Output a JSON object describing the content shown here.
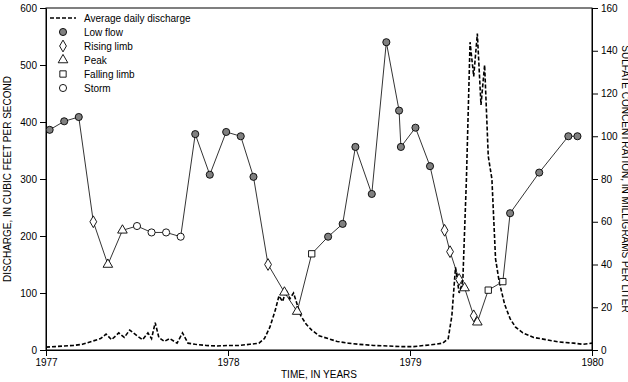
{
  "chart_data": {
    "type": "line",
    "x_label": "TIME, IN YEARS",
    "y_label": "DISCHARGE, IN CUBIC FEET PER SECOND",
    "y2_label": "SULFATE CONCENTRATION, IN MILLIGRAMS PER LITER",
    "xlim": [
      1977,
      1980
    ],
    "xticks": [
      1977,
      1978,
      1979,
      1980
    ],
    "ylim": [
      0,
      600
    ],
    "yticks": [
      0,
      100,
      200,
      300,
      400,
      500,
      600
    ],
    "y2lim": [
      0,
      160
    ],
    "y2ticks": [
      0,
      20,
      40,
      60,
      80,
      100,
      120,
      140,
      160
    ],
    "grid": false,
    "legend": "upper-left",
    "series": [
      {
        "name": "Average daily discharge",
        "type": "line",
        "line_style": "dashed",
        "color": "#000000",
        "axis": "y",
        "x": [
          1977.0,
          1977.05,
          1977.1,
          1977.15,
          1977.2,
          1977.25,
          1977.3,
          1977.33,
          1977.36,
          1977.4,
          1977.43,
          1977.46,
          1977.5,
          1977.53,
          1977.56,
          1977.58,
          1977.6,
          1977.62,
          1977.65,
          1977.68,
          1977.72,
          1977.75,
          1977.78,
          1977.82,
          1977.88,
          1977.94,
          1978.0,
          1978.06,
          1978.12,
          1978.17,
          1978.2,
          1978.23,
          1978.26,
          1978.28,
          1978.3,
          1978.32,
          1978.34,
          1978.36,
          1978.38,
          1978.4,
          1978.43,
          1978.46,
          1978.5,
          1978.55,
          1978.6,
          1978.66,
          1978.72,
          1978.8,
          1978.88,
          1978.95,
          1979.02,
          1979.08,
          1979.14,
          1979.18,
          1979.21,
          1979.23,
          1979.25,
          1979.27,
          1979.29,
          1979.31,
          1979.33,
          1979.35,
          1979.37,
          1979.39,
          1979.41,
          1979.43,
          1979.45,
          1979.47,
          1979.49,
          1979.52,
          1979.55,
          1979.58,
          1979.62,
          1979.68,
          1979.75,
          1979.82,
          1979.9,
          1979.95,
          1980.0
        ],
        "values": [
          5,
          6,
          7,
          8,
          10,
          15,
          20,
          28,
          18,
          30,
          22,
          35,
          25,
          18,
          30,
          20,
          48,
          22,
          15,
          20,
          12,
          30,
          12,
          10,
          8,
          7,
          8,
          8,
          10,
          12,
          20,
          40,
          70,
          95,
          85,
          105,
          90,
          100,
          80,
          60,
          45,
          35,
          25,
          20,
          15,
          12,
          10,
          8,
          7,
          6,
          6,
          8,
          10,
          12,
          20,
          60,
          145,
          100,
          120,
          300,
          540,
          480,
          555,
          430,
          500,
          340,
          300,
          160,
          120,
          80,
          55,
          40,
          30,
          22,
          18,
          14,
          12,
          10,
          12
        ]
      },
      {
        "name": "Low flow",
        "type": "scatter",
        "marker": "filled-circle",
        "color": "#808080",
        "axis": "y2",
        "x": [
          1977.02,
          1977.1,
          1977.18,
          1977.26,
          1977.34,
          1977.42,
          1977.5,
          1977.58,
          1977.66,
          1977.74,
          1977.82,
          1977.9,
          1977.99,
          1978.07,
          1978.14,
          1978.22,
          1978.31,
          1978.38,
          1978.46,
          1978.55,
          1978.63,
          1978.7,
          1978.79,
          1978.87,
          1978.94,
          1978.95,
          1979.03,
          1979.11,
          1979.19,
          1979.22,
          1979.27,
          1979.3,
          1979.35,
          1979.37,
          1979.43,
          1979.51,
          1979.55,
          1979.71,
          1979.87,
          1979.92
        ],
        "values": [
          103,
          107,
          109,
          null,
          null,
          null,
          null,
          null,
          null,
          null,
          101,
          82,
          102,
          100,
          81,
          null,
          null,
          null,
          null,
          53,
          59,
          95,
          73,
          144,
          112,
          95,
          104,
          86,
          null,
          null,
          null,
          null,
          null,
          null,
          null,
          null,
          64,
          83,
          100,
          100
        ]
      },
      {
        "name": "Rising limb",
        "type": "scatter",
        "marker": "diamond",
        "color": "#000000",
        "axis": "y2",
        "x": [
          1977.02,
          1977.1,
          1977.18,
          1977.26,
          1977.34,
          1977.42,
          1977.5,
          1977.58,
          1977.66,
          1977.74,
          1977.82,
          1977.9,
          1977.99,
          1978.07,
          1978.14,
          1978.22,
          1978.31,
          1978.38,
          1978.46,
          1978.55,
          1978.63,
          1978.7,
          1978.79,
          1978.87,
          1978.94,
          1978.95,
          1979.03,
          1979.11,
          1979.19,
          1979.22,
          1979.27,
          1979.3,
          1979.35,
          1979.37,
          1979.43,
          1979.51,
          1979.55,
          1979.71,
          1979.87,
          1979.92
        ],
        "values": [
          null,
          null,
          null,
          60,
          null,
          null,
          null,
          null,
          null,
          null,
          null,
          null,
          null,
          null,
          null,
          40,
          null,
          null,
          null,
          null,
          null,
          null,
          null,
          null,
          null,
          null,
          null,
          null,
          56,
          46,
          33,
          null,
          16,
          null,
          null,
          null,
          null,
          null,
          null,
          null
        ]
      },
      {
        "name": "Peak",
        "type": "scatter",
        "marker": "triangle",
        "color": "#000000",
        "axis": "y2",
        "x": [
          1977.02,
          1977.1,
          1977.18,
          1977.26,
          1977.34,
          1977.42,
          1977.5,
          1977.58,
          1977.66,
          1977.74,
          1977.82,
          1977.9,
          1977.99,
          1978.07,
          1978.14,
          1978.22,
          1978.31,
          1978.38,
          1978.46,
          1978.55,
          1978.63,
          1978.7,
          1978.79,
          1978.87,
          1978.94,
          1978.95,
          1979.03,
          1979.11,
          1979.19,
          1979.22,
          1979.27,
          1979.3,
          1979.35,
          1979.37,
          1979.43,
          1979.51,
          1979.55,
          1979.71,
          1979.87,
          1979.92
        ],
        "values": [
          null,
          null,
          null,
          null,
          40,
          56,
          null,
          null,
          null,
          null,
          null,
          null,
          null,
          null,
          null,
          null,
          27,
          18,
          null,
          null,
          null,
          null,
          null,
          null,
          null,
          null,
          null,
          null,
          null,
          null,
          null,
          29,
          null,
          13,
          null,
          null,
          null,
          null,
          null,
          null
        ]
      },
      {
        "name": "Falling limb",
        "type": "scatter",
        "marker": "square",
        "color": "#000000",
        "axis": "y2",
        "x": [
          1977.02,
          1977.1,
          1977.18,
          1977.26,
          1977.34,
          1977.42,
          1977.5,
          1977.58,
          1977.66,
          1977.74,
          1977.82,
          1977.9,
          1977.99,
          1978.07,
          1978.14,
          1978.22,
          1978.31,
          1978.38,
          1978.46,
          1978.55,
          1978.63,
          1978.7,
          1978.79,
          1978.87,
          1978.94,
          1978.95,
          1979.03,
          1979.11,
          1979.19,
          1979.22,
          1979.27,
          1979.3,
          1979.35,
          1979.37,
          1979.43,
          1979.51,
          1979.55,
          1979.71,
          1979.87,
          1979.92
        ],
        "values": [
          null,
          null,
          null,
          null,
          null,
          null,
          null,
          null,
          null,
          null,
          null,
          null,
          null,
          null,
          null,
          null,
          null,
          null,
          45,
          null,
          null,
          null,
          null,
          null,
          null,
          null,
          null,
          null,
          null,
          null,
          null,
          null,
          null,
          null,
          28,
          32,
          null,
          null,
          null,
          null
        ]
      },
      {
        "name": "Storm",
        "type": "scatter",
        "marker": "circle",
        "color": "#000000",
        "axis": "y2",
        "x": [
          1977.02,
          1977.1,
          1977.18,
          1977.26,
          1977.34,
          1977.42,
          1977.5,
          1977.58,
          1977.66,
          1977.74,
          1977.82,
          1977.9,
          1977.99,
          1978.07,
          1978.14,
          1978.22,
          1978.31,
          1978.38,
          1978.46,
          1978.55,
          1978.63,
          1978.7,
          1978.79,
          1978.87,
          1978.94,
          1978.95,
          1979.03,
          1979.11,
          1979.19,
          1979.22,
          1979.27,
          1979.3,
          1979.35,
          1979.37,
          1979.43,
          1979.51,
          1979.55,
          1979.71,
          1979.87,
          1979.92
        ],
        "values": [
          null,
          null,
          null,
          null,
          null,
          null,
          58,
          55,
          55,
          53,
          null,
          null,
          null,
          null,
          null,
          null,
          null,
          null,
          null,
          null,
          null,
          null,
          null,
          null,
          null,
          null,
          null,
          null,
          null,
          null,
          null,
          null,
          null,
          null,
          null,
          null,
          null,
          null,
          null,
          null
        ]
      }
    ]
  }
}
